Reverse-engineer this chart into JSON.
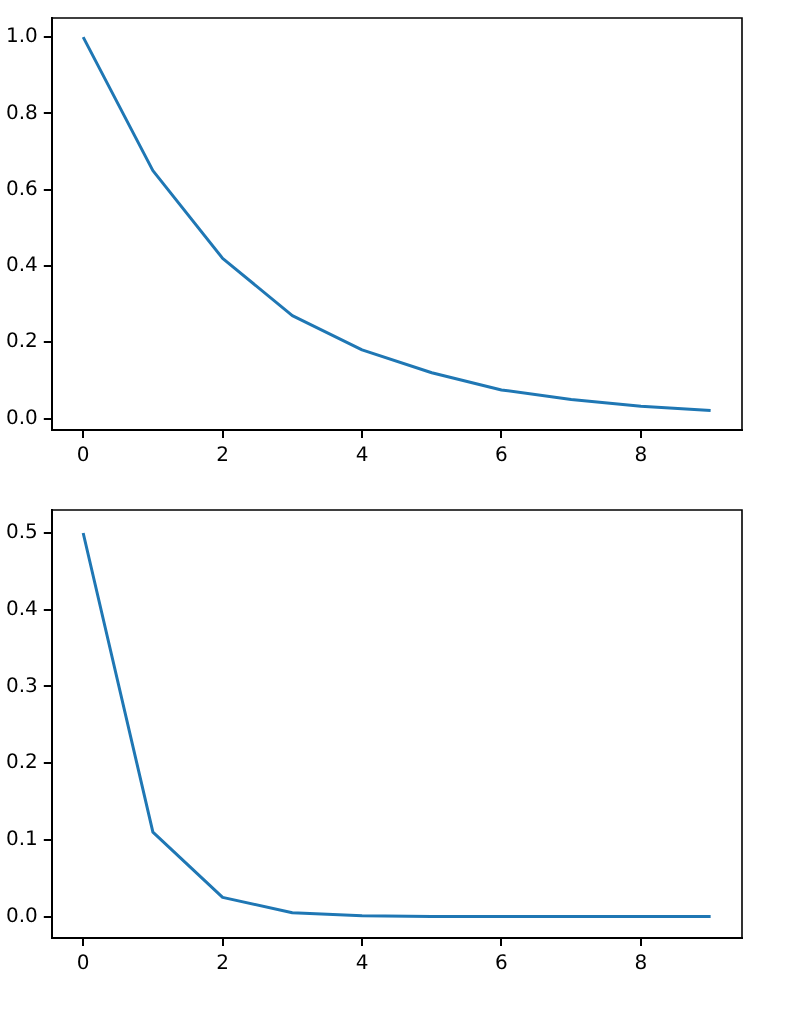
{
  "chart_data": [
    {
      "type": "line",
      "x": [
        0,
        1,
        2,
        3,
        4,
        5,
        6,
        7,
        8,
        9
      ],
      "xlim": [
        -0.45,
        9.45
      ],
      "xticks": [
        0,
        2,
        4,
        6,
        8
      ],
      "ylim": [
        -0.03,
        1.05
      ],
      "yticks": [
        {
          "value": 0,
          "label": "0.0"
        },
        {
          "value": 0.2,
          "label": "0.2"
        },
        {
          "value": 0.4,
          "label": "0.4"
        },
        {
          "value": 0.6,
          "label": "0.6"
        },
        {
          "value": 0.8,
          "label": "0.8"
        },
        {
          "value": 1.0,
          "label": "1.0"
        }
      ],
      "grid": false,
      "legend": false,
      "marker": "none",
      "series": [
        {
          "color": "#1f77b4",
          "values": [
            1.0,
            0.65,
            0.42,
            0.27,
            0.18,
            0.12,
            0.075,
            0.05,
            0.032,
            0.021
          ]
        }
      ]
    },
    {
      "type": "line",
      "x": [
        0,
        1,
        2,
        3,
        4,
        5,
        6,
        7,
        8,
        9
      ],
      "xlim": [
        -0.45,
        9.45
      ],
      "xticks": [
        0,
        2,
        4,
        6,
        8
      ],
      "ylim": [
        -0.028,
        0.53
      ],
      "yticks": [
        {
          "value": 0,
          "label": "0.0"
        },
        {
          "value": 0.1,
          "label": "0.1"
        },
        {
          "value": 0.2,
          "label": "0.2"
        },
        {
          "value": 0.3,
          "label": "0.3"
        },
        {
          "value": 0.4,
          "label": "0.4"
        },
        {
          "value": 0.5,
          "label": "0.5"
        }
      ],
      "grid": false,
      "legend": false,
      "marker": "none",
      "series": [
        {
          "color": "#1f77b4",
          "values": [
            0.5,
            0.11,
            0.025,
            0.005,
            0.001,
            0.0,
            0.0,
            0.0,
            0.0,
            0.0
          ]
        }
      ]
    }
  ]
}
